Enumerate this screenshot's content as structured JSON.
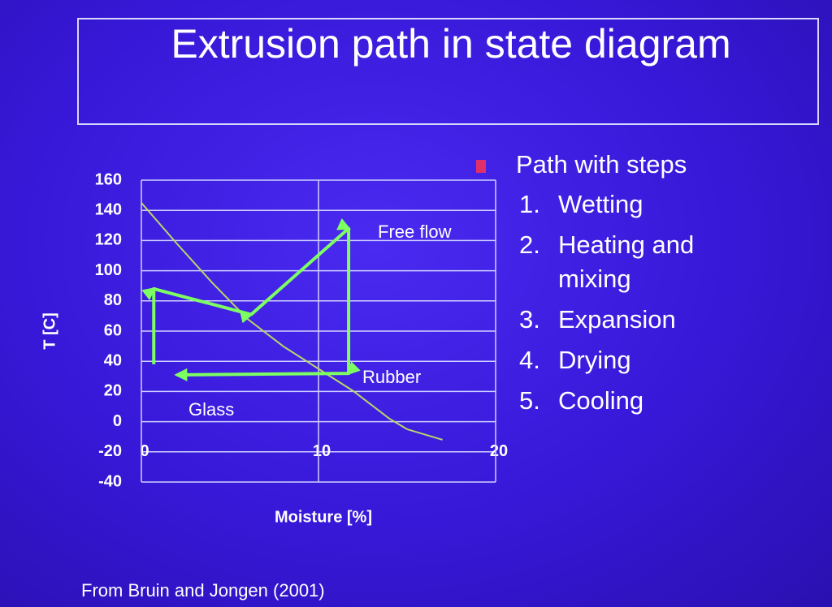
{
  "chart_data": {
    "type": "line",
    "title": "Extrusion path in state diagram",
    "xlabel": "Moisture [%]",
    "ylabel": "T [C]",
    "xlim": [
      0,
      20
    ],
    "xticks": [
      0,
      10,
      20
    ],
    "ylim": [
      -40,
      160
    ],
    "yticks": [
      -40,
      -20,
      0,
      20,
      40,
      60,
      80,
      100,
      120,
      140,
      160
    ],
    "grid": true,
    "series": [
      {
        "color": "#b9d66a",
        "x": [
          0,
          2,
          4,
          6,
          8,
          10,
          12,
          14,
          15,
          17
        ],
        "values": [
          145,
          118,
          92,
          68,
          50,
          35,
          20,
          2,
          -5,
          -12
        ]
      },
      {
        "color": "#7dff62",
        "arrows": true,
        "x": [
          0.7,
          0.7,
          6.2,
          11.7,
          11.7,
          2
        ],
        "values": [
          38,
          88,
          71,
          128,
          32,
          31
        ]
      }
    ],
    "annotations": [
      "Free flow",
      "Rubber",
      "Glass"
    ]
  },
  "bullets": {
    "heading": "Path with steps",
    "items": [
      {
        "number": "1.",
        "text": "Wetting"
      },
      {
        "number": "2.",
        "text": "Heating and mixing"
      },
      {
        "number": "3.",
        "text": "Expansion"
      },
      {
        "number": "4.",
        "text": "Drying"
      },
      {
        "number": "5.",
        "text": "Cooling"
      }
    ]
  },
  "source": "From Bruin and Jongen (2001)"
}
